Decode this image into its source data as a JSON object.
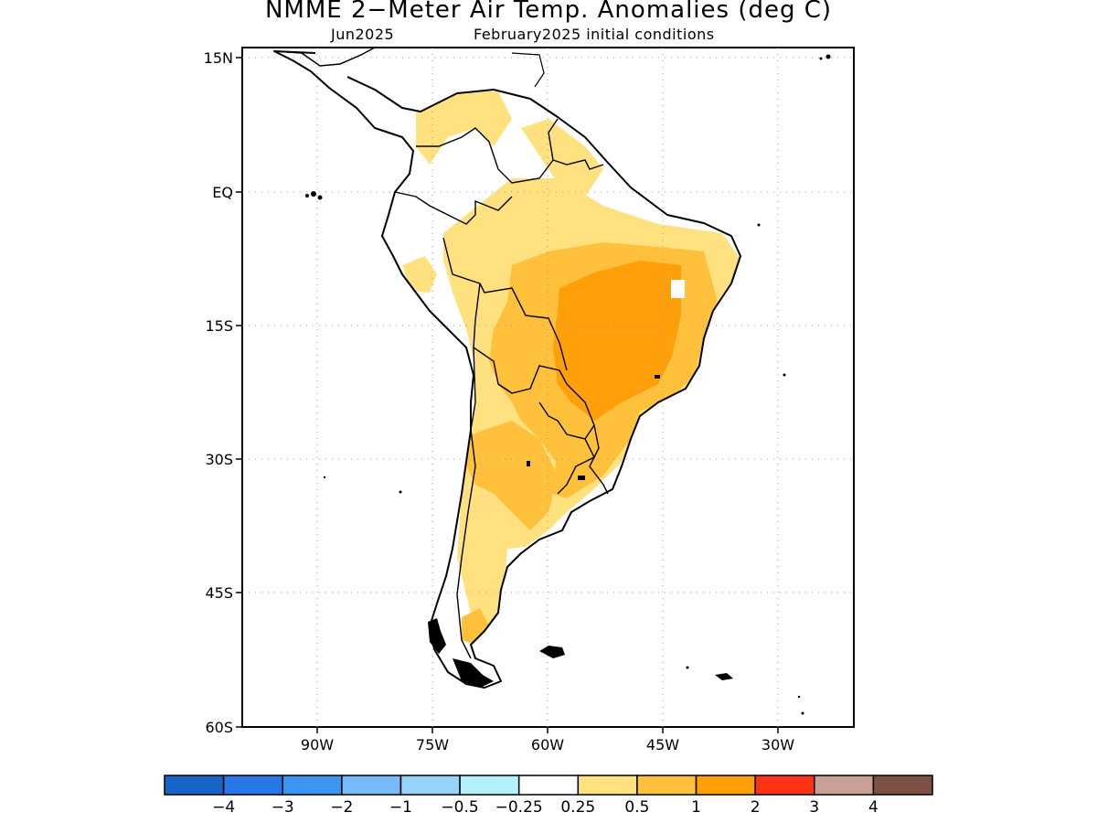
{
  "title": "NMME 2−Meter Air Temp. Anomalies (deg C)",
  "subtitle_left": "Jun2025",
  "subtitle_right": "February2025 initial conditions",
  "lat_labels": [
    "15N",
    "EQ",
    "15S",
    "30S",
    "45S",
    "60S"
  ],
  "lon_labels": [
    "90W",
    "75W",
    "60W",
    "45W",
    "30W"
  ],
  "legend": {
    "colors": [
      "#1764c8",
      "#2678e8",
      "#3c96f0",
      "#78b9f9",
      "#96d2fa",
      "#b4f0fa",
      "#ffffff",
      "#ffe27f",
      "#ffc13c",
      "#ffa00a",
      "#ff3214",
      "#c8a096",
      "#7d5046"
    ],
    "labels": [
      "−4",
      "−3",
      "−2",
      "−1",
      "−0.5",
      "−0.25",
      "0.25",
      "0.5",
      "1",
      "2",
      "3",
      "4"
    ]
  },
  "map_data": {
    "lat_range": [
      -60,
      15
    ],
    "lon_range": [
      -100,
      -20
    ],
    "anomaly_class_colors": {
      "0.25 to 0.5": "#ffe27f",
      "0.5 to 1": "#ffc13c",
      "1 to 2": "#ffa00a"
    }
  }
}
